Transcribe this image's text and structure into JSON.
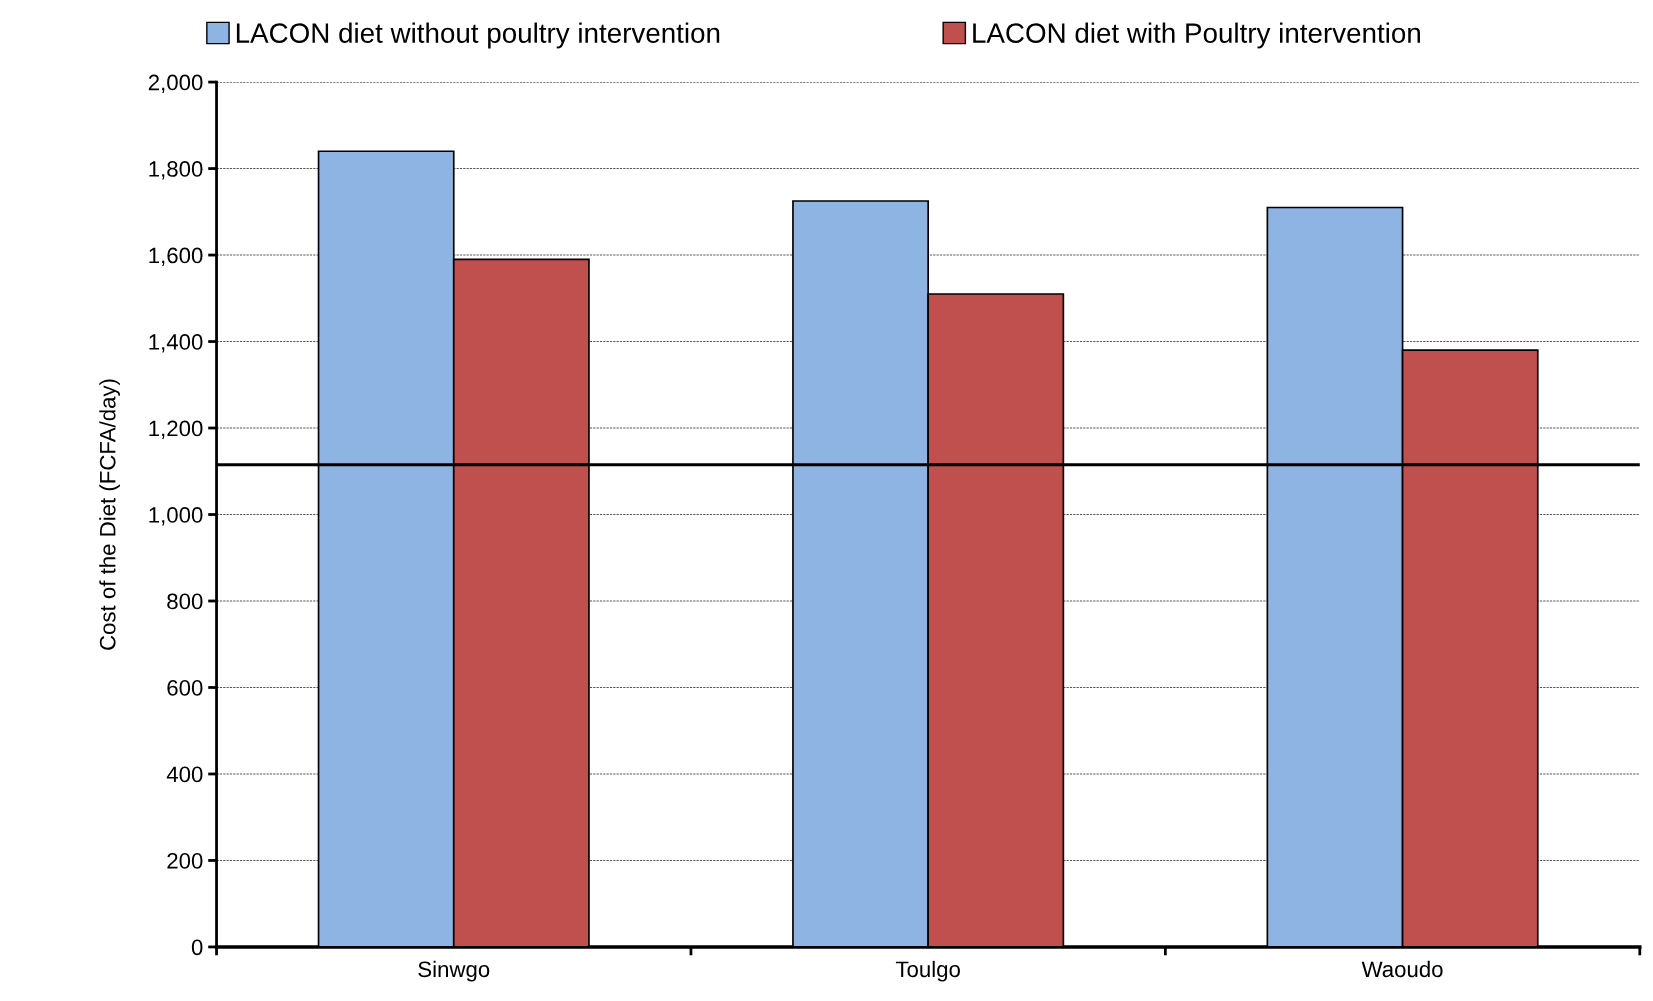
{
  "chart_data": {
    "type": "bar",
    "ylabel": "Cost of the Diet (FCFA/day)",
    "categories": [
      "Sinwgo",
      "Toulgo",
      "Waoudo"
    ],
    "series": [
      {
        "name": "LACON diet without poultry intervention",
        "color": "#8eb4e3",
        "values": [
          1840,
          1725,
          1710
        ]
      },
      {
        "name": "LACON diet with Poultry intervention",
        "color": "#c0504d",
        "values": [
          1590,
          1510,
          1380
        ]
      }
    ],
    "ylim": [
      0,
      2000
    ],
    "yticks": [
      0,
      200,
      400,
      600,
      800,
      {
        "value": 1000,
        "label": "1,000"
      },
      {
        "value": 1200,
        "label": "1,200"
      },
      {
        "value": 1400,
        "label": "1,400"
      },
      {
        "value": 1600,
        "label": "1,600"
      },
      {
        "value": 1800,
        "label": "1,800"
      },
      {
        "value": 2000,
        "label": "2,000"
      }
    ],
    "ref_lines": [
      {
        "axis": "y",
        "value": 1115,
        "color": "#000000",
        "line_style": "solid"
      }
    ],
    "grid": "y",
    "legend": "top"
  }
}
